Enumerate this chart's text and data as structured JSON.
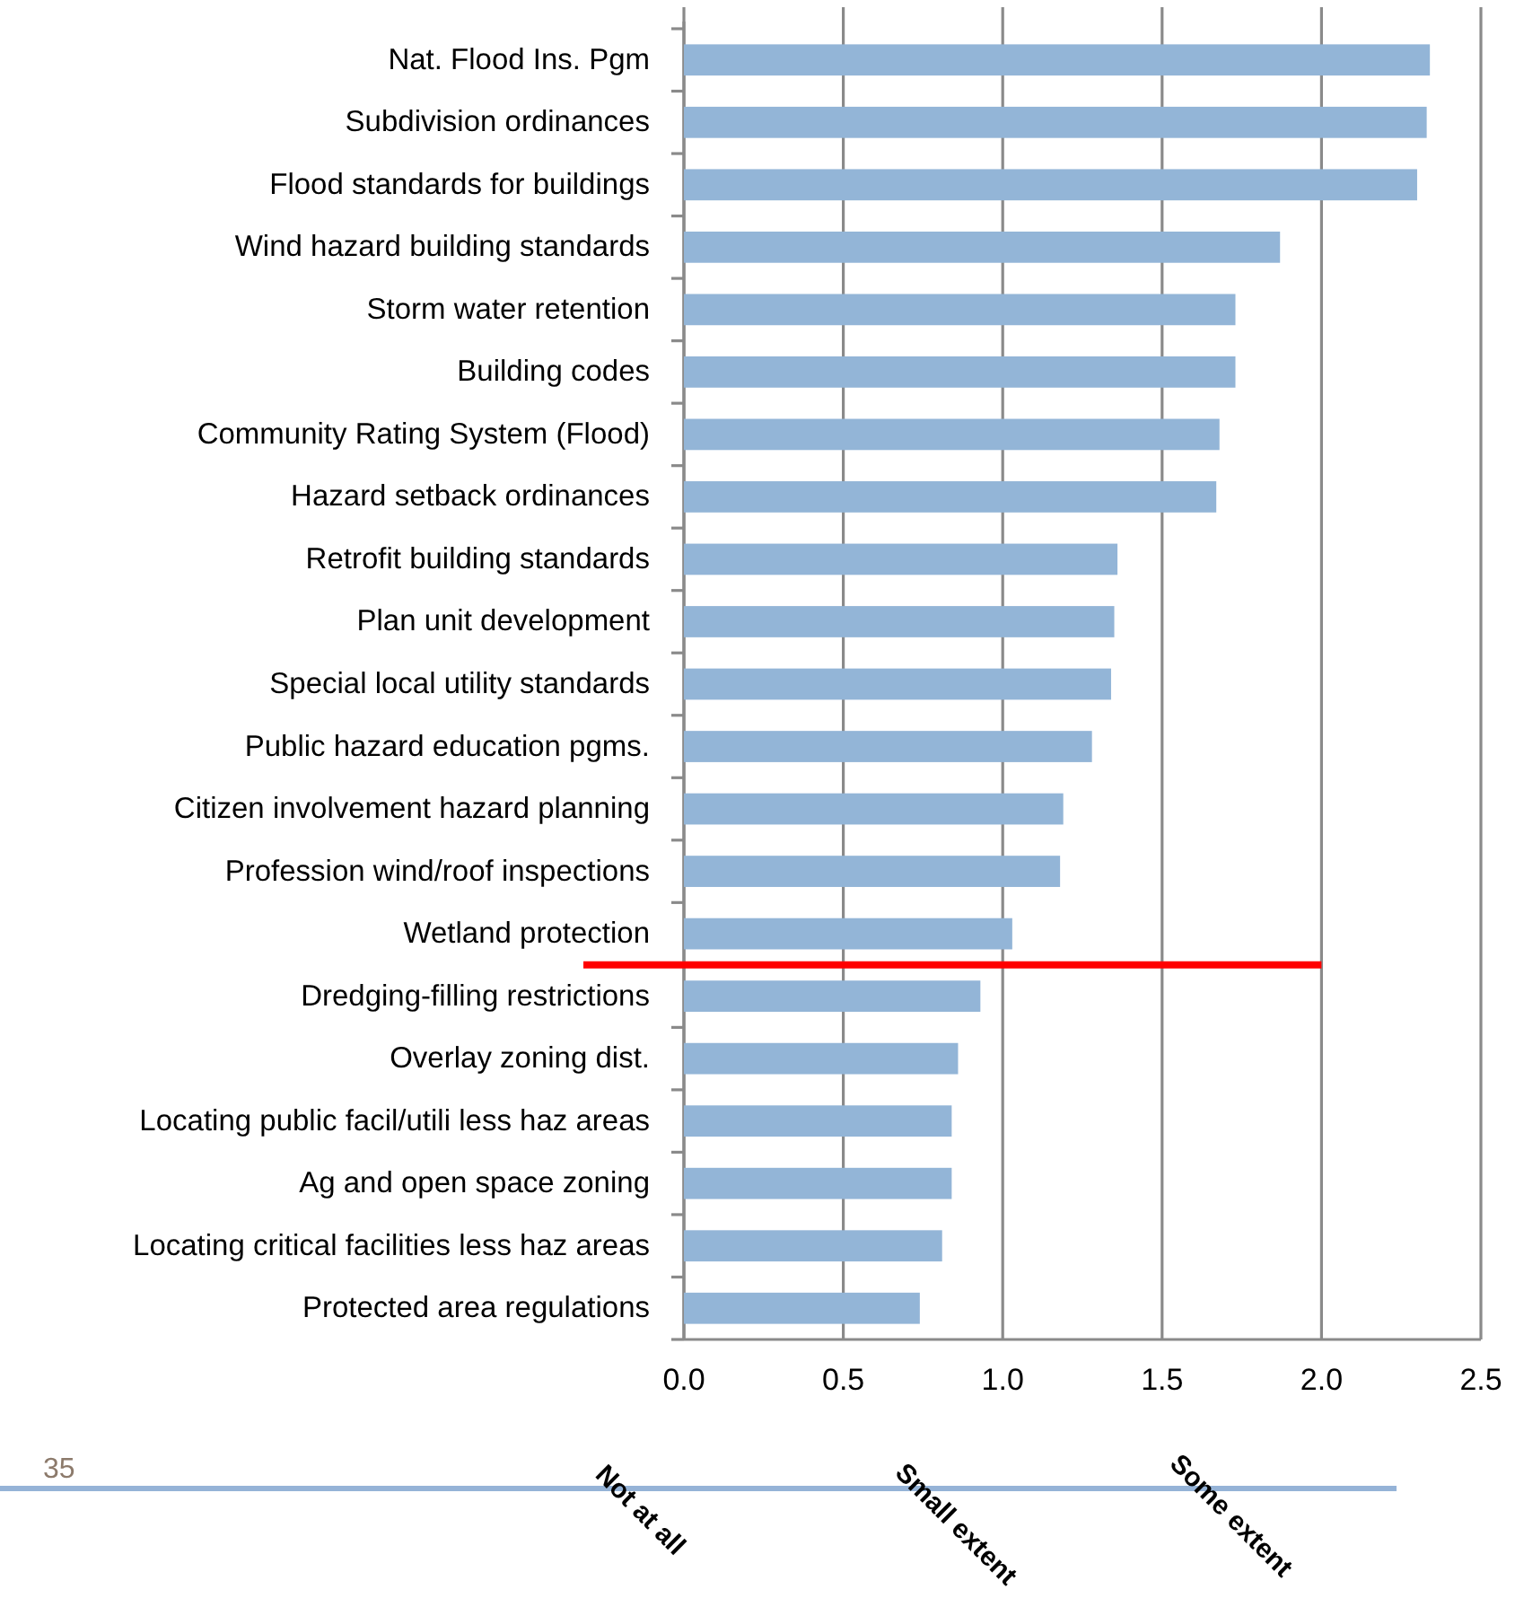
{
  "chart_data": {
    "type": "bar",
    "orientation": "horizontal",
    "categories": [
      "Nat. Flood Ins. Pgm",
      "Subdivision ordinances",
      "Flood standards for buildings",
      "Wind hazard building standards",
      "Storm water retention",
      "Building codes",
      "Community Rating System (Flood)",
      "Hazard setback ordinances",
      "Retrofit building standards",
      "Plan unit development",
      "Special local utility standards",
      "Public hazard education pgms.",
      "Citizen involvement hazard planning",
      "Profession wind/roof inspections",
      "Wetland protection",
      "Dredging-filling restrictions",
      "Overlay zoning dist.",
      "Locating public facil/utili less haz areas",
      "Ag and open space zoning",
      "Locating critical facilities less haz areas",
      "Protected area regulations"
    ],
    "values": [
      2.34,
      2.33,
      2.3,
      1.87,
      1.73,
      1.73,
      1.68,
      1.67,
      1.36,
      1.35,
      1.34,
      1.28,
      1.19,
      1.18,
      1.03,
      0.93,
      0.86,
      0.84,
      0.84,
      0.81,
      0.74
    ],
    "color": "#93b5d7",
    "xlim": [
      0,
      2.5
    ],
    "xticks": [
      {
        "value": 0,
        "label": "0.0"
      },
      0.5,
      {
        "value": 1,
        "label": "1.0"
      },
      1.5,
      {
        "value": 2,
        "label": "2.0"
      },
      2.5
    ],
    "grid": "x",
    "ref_lines": [
      {
        "axis": "y",
        "value": "Wetland protection",
        "color": "#ff0000"
      }
    ],
    "annotations": [
      "35",
      "Not at all",
      "Small extent",
      "Some extent"
    ]
  }
}
